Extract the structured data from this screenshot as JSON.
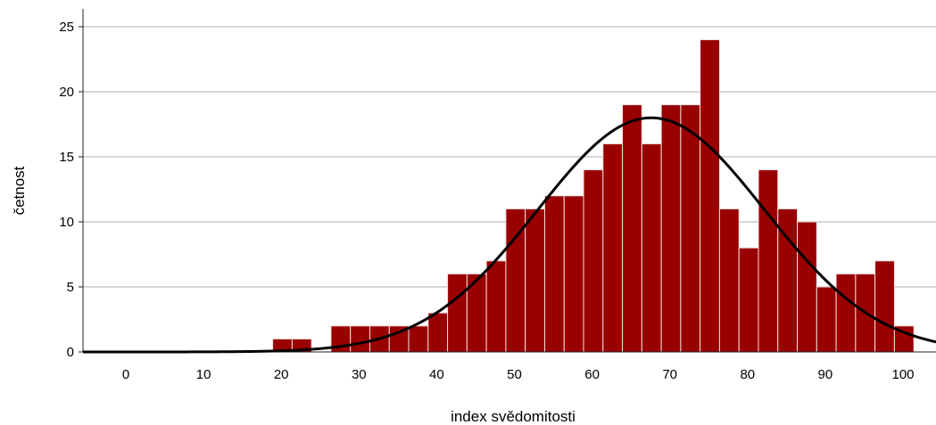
{
  "chart_data": {
    "type": "bar",
    "subtype": "histogram",
    "xlabel": "index svědomitosti",
    "ylabel": "četnost",
    "xlim": [
      -5.5,
      105
    ],
    "ylim": [
      0,
      26
    ],
    "x_ticks": [
      0,
      10,
      20,
      30,
      40,
      50,
      60,
      70,
      80,
      90,
      100
    ],
    "y_ticks": [
      0,
      5,
      10,
      15,
      20,
      25
    ],
    "grid": "horizontal",
    "bin_width": 2.5,
    "bins": [
      {
        "start": 18.9,
        "value": 1
      },
      {
        "start": 21.4,
        "value": 1
      },
      {
        "start": 26.4,
        "value": 2
      },
      {
        "start": 28.9,
        "value": 2
      },
      {
        "start": 31.4,
        "value": 2
      },
      {
        "start": 33.9,
        "value": 2
      },
      {
        "start": 36.4,
        "value": 2
      },
      {
        "start": 38.9,
        "value": 3
      },
      {
        "start": 41.4,
        "value": 6
      },
      {
        "start": 43.9,
        "value": 6
      },
      {
        "start": 46.4,
        "value": 7
      },
      {
        "start": 48.9,
        "value": 11
      },
      {
        "start": 51.4,
        "value": 11
      },
      {
        "start": 53.9,
        "value": 12
      },
      {
        "start": 56.4,
        "value": 12
      },
      {
        "start": 58.9,
        "value": 14
      },
      {
        "start": 61.4,
        "value": 16
      },
      {
        "start": 63.9,
        "value": 19
      },
      {
        "start": 66.4,
        "value": 16
      },
      {
        "start": 68.9,
        "value": 19
      },
      {
        "start": 71.4,
        "value": 19
      },
      {
        "start": 73.9,
        "value": 24
      },
      {
        "start": 76.4,
        "value": 11
      },
      {
        "start": 78.9,
        "value": 8
      },
      {
        "start": 81.4,
        "value": 14
      },
      {
        "start": 83.9,
        "value": 11
      },
      {
        "start": 86.4,
        "value": 10
      },
      {
        "start": 88.9,
        "value": 5
      },
      {
        "start": 91.4,
        "value": 6
      },
      {
        "start": 93.9,
        "value": 6
      },
      {
        "start": 96.4,
        "value": 7
      },
      {
        "start": 98.9,
        "value": 2
      }
    ],
    "normal_curve": {
      "mean": 67.6,
      "sd": 14.6,
      "peak": 18
    },
    "colors": {
      "bar": "#990000",
      "bar_edge": "#f0e0e0",
      "curve": "#000000",
      "grid": "#c8c8c8"
    }
  }
}
